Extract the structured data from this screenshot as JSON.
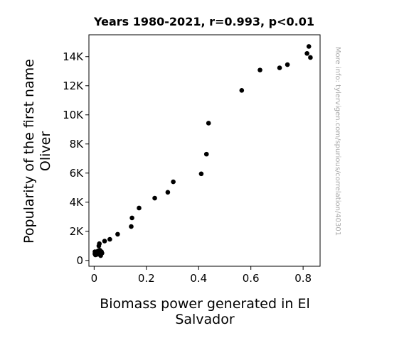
{
  "chart_data": {
    "type": "scatter",
    "title": "Years 1980-2021, r=0.993, p<0.01",
    "xlabel_lines": [
      "Biomass power generated in El",
      "Salvador"
    ],
    "ylabel_lines": [
      "Popularity of the first name",
      "Oliver"
    ],
    "xlim": [
      -0.02,
      0.865
    ],
    "ylim": [
      -400,
      15500
    ],
    "x_ticks": [
      {
        "value": 0,
        "label": "0"
      },
      {
        "value": 0.2,
        "label": "0.2"
      },
      {
        "value": 0.4,
        "label": "0.4"
      },
      {
        "value": 0.6,
        "label": "0.6"
      },
      {
        "value": 0.8,
        "label": "0.8"
      }
    ],
    "y_ticks": [
      {
        "value": 0,
        "label": "0"
      },
      {
        "value": 2000,
        "label": "2K"
      },
      {
        "value": 4000,
        "label": "4K"
      },
      {
        "value": 6000,
        "label": "6K"
      },
      {
        "value": 8000,
        "label": "8K"
      },
      {
        "value": 10000,
        "label": "10K"
      },
      {
        "value": 12000,
        "label": "12K"
      },
      {
        "value": 14000,
        "label": "14K"
      }
    ],
    "grid": false,
    "marker_color": "#000000",
    "points": [
      {
        "x": 0.003,
        "y": 450
      },
      {
        "x": 0.003,
        "y": 600
      },
      {
        "x": 0.005,
        "y": 380
      },
      {
        "x": 0.008,
        "y": 550
      },
      {
        "x": 0.01,
        "y": 500
      },
      {
        "x": 0.012,
        "y": 420
      },
      {
        "x": 0.015,
        "y": 650
      },
      {
        "x": 0.018,
        "y": 1000
      },
      {
        "x": 0.02,
        "y": 1150
      },
      {
        "x": 0.02,
        "y": 550
      },
      {
        "x": 0.022,
        "y": 700
      },
      {
        "x": 0.024,
        "y": 430
      },
      {
        "x": 0.025,
        "y": 330
      },
      {
        "x": 0.028,
        "y": 600
      },
      {
        "x": 0.03,
        "y": 500
      },
      {
        "x": 0.04,
        "y": 1330
      },
      {
        "x": 0.06,
        "y": 1450
      },
      {
        "x": 0.09,
        "y": 1800
      },
      {
        "x": 0.142,
        "y": 2330
      },
      {
        "x": 0.145,
        "y": 2920
      },
      {
        "x": 0.172,
        "y": 3600
      },
      {
        "x": 0.232,
        "y": 4280
      },
      {
        "x": 0.282,
        "y": 4680
      },
      {
        "x": 0.303,
        "y": 5400
      },
      {
        "x": 0.41,
        "y": 5950
      },
      {
        "x": 0.43,
        "y": 7300
      },
      {
        "x": 0.438,
        "y": 9430
      },
      {
        "x": 0.565,
        "y": 11680
      },
      {
        "x": 0.635,
        "y": 13080
      },
      {
        "x": 0.71,
        "y": 13230
      },
      {
        "x": 0.74,
        "y": 13450
      },
      {
        "x": 0.815,
        "y": 14220
      },
      {
        "x": 0.822,
        "y": 14700
      },
      {
        "x": 0.828,
        "y": 13940
      }
    ]
  },
  "watermark": "More info: tylervigen.com/spurious/correlation/40301"
}
